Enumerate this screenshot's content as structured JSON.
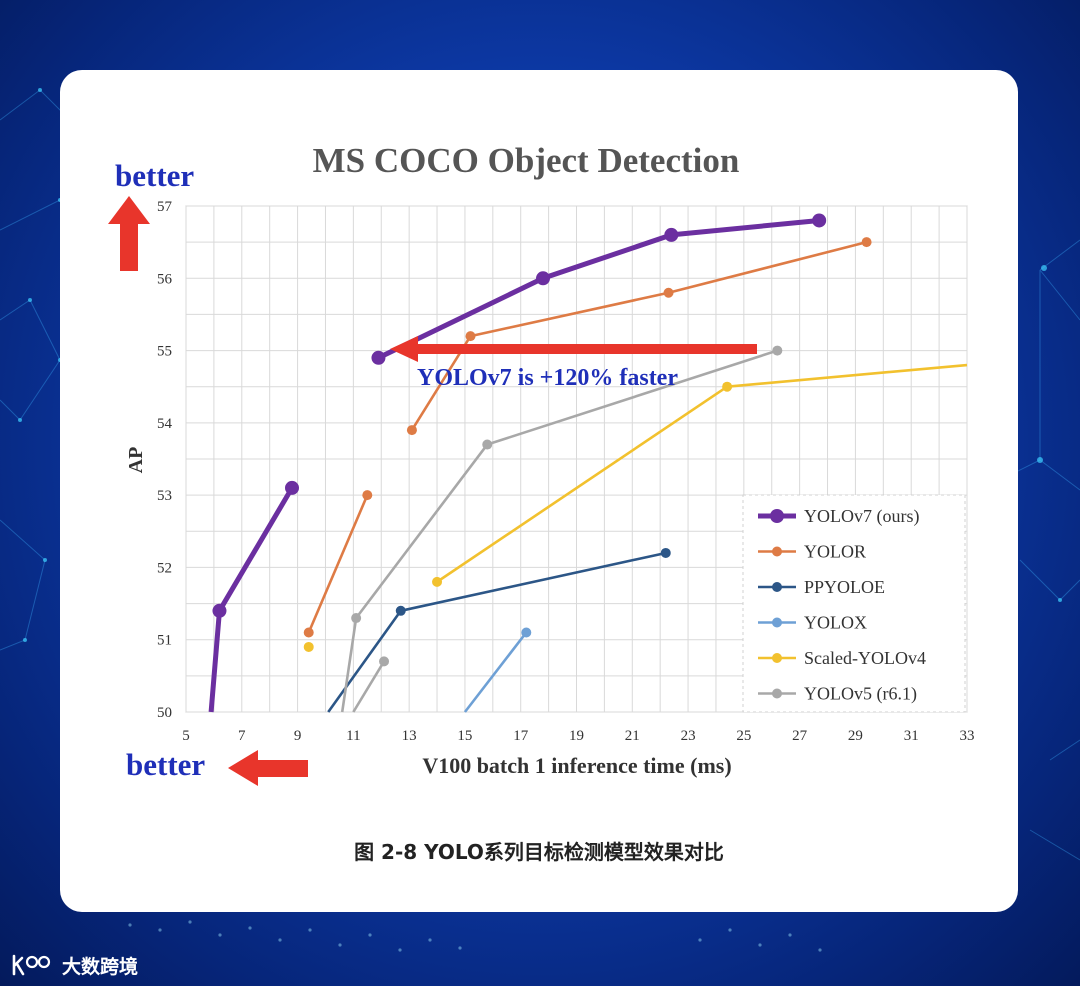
{
  "caption": "图 2-8 YOLO系列目标检测模型效果对比",
  "brand": {
    "name": "大数跨境",
    "logo_icon": "k100-logo-icon"
  },
  "annotations": {
    "better_y": "better",
    "better_x": "better",
    "speedup": "YOLOv7 is +120% faster"
  },
  "colors": {
    "background": "#0d3aa8",
    "card": "#ffffff",
    "arrow": "#e8352b",
    "annotation_text": "#1f2fb8"
  },
  "chart_data": {
    "type": "line",
    "title": "MS COCO Object Detection",
    "xlabel": "V100 batch 1 inference time (ms)",
    "ylabel": "AP",
    "xlim": [
      5,
      33
    ],
    "ylim": [
      50,
      57
    ],
    "xticks": [
      5,
      7,
      9,
      11,
      13,
      15,
      17,
      19,
      21,
      23,
      25,
      27,
      29,
      31,
      33
    ],
    "yticks": [
      50,
      51,
      52,
      53,
      54,
      55,
      56,
      57
    ],
    "grid": true,
    "legend_position": "bottom-right",
    "series": [
      {
        "name": "YOLOv7 (ours)",
        "color": "#6b2fa0",
        "group": [
          [
            5.9,
            50.0
          ],
          [
            6.2,
            51.4
          ],
          [
            8.8,
            53.1
          ]
        ],
        "main": [
          [
            11.9,
            54.9
          ],
          [
            17.8,
            56.0
          ],
          [
            22.4,
            56.6
          ],
          [
            27.7,
            56.8
          ]
        ]
      },
      {
        "name": "YOLOR",
        "color": "#de7b45",
        "group": [
          [
            9.4,
            51.1
          ],
          [
            11.5,
            53.0
          ]
        ],
        "main": [
          [
            13.1,
            53.9
          ],
          [
            15.2,
            55.2
          ],
          [
            22.3,
            55.8
          ],
          [
            29.4,
            56.5
          ]
        ]
      },
      {
        "name": "PPYOLOE",
        "color": "#2c5687",
        "group": [
          [
            10.1,
            50.0
          ],
          [
            12.7,
            51.4
          ],
          [
            22.2,
            52.2
          ]
        ]
      },
      {
        "name": "YOLOX",
        "color": "#6ea0d5",
        "group": [
          [
            15.0,
            50.0
          ],
          [
            17.2,
            51.1
          ]
        ]
      },
      {
        "name": "Scaled-YOLOv4",
        "color": "#f2c12e",
        "group": [
          [
            9.4,
            50.9
          ]
        ],
        "main": [
          [
            14.0,
            51.8
          ],
          [
            24.4,
            54.5
          ],
          [
            33.0,
            54.8
          ]
        ]
      },
      {
        "name": "YOLOv5 (r6.1)",
        "color": "#a8a8a8",
        "group": [
          [
            10.6,
            50.0
          ],
          [
            11.1,
            51.3
          ],
          [
            15.8,
            53.7
          ],
          [
            26.2,
            55.0
          ]
        ],
        "extra": [
          [
            11.0,
            50.0
          ],
          [
            12.1,
            50.7
          ]
        ]
      }
    ]
  }
}
